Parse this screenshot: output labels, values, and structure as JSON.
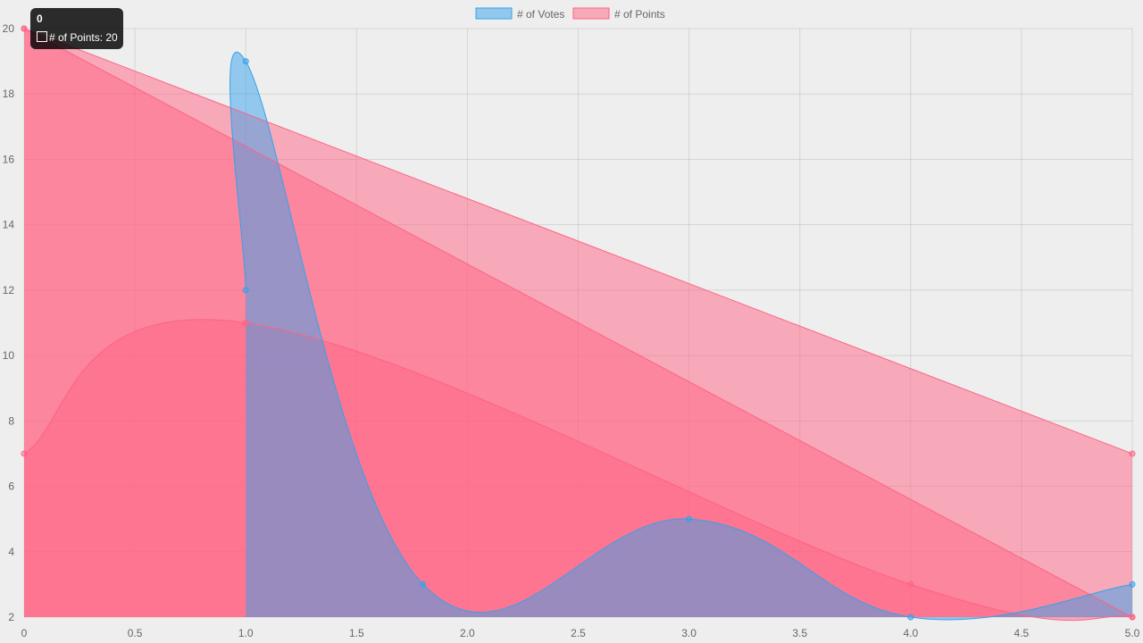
{
  "chart_data": {
    "type": "line",
    "x_axis": {
      "min": 0,
      "max": 5,
      "ticks": [
        "0",
        "0.5",
        "1.0",
        "1.5",
        "2.0",
        "2.5",
        "3.0",
        "3.5",
        "4.0",
        "4.5",
        "5.0"
      ]
    },
    "y_axis": {
      "min": 2,
      "max": 20,
      "ticks": [
        "2",
        "4",
        "6",
        "8",
        "10",
        "12",
        "14",
        "16",
        "18",
        "20"
      ]
    },
    "grid": true,
    "legend_position": "top",
    "series": [
      {
        "name": "# of Votes",
        "color": "#36a2eb",
        "fill": "rgba(54,162,235,0.5)",
        "points": [
          {
            "x": 1.0,
            "y": 12
          },
          {
            "x": 1.0,
            "y": 19
          },
          {
            "x": 1.8,
            "y": 3
          },
          {
            "x": 3.0,
            "y": 5
          },
          {
            "x": 4.0,
            "y": 2
          },
          {
            "x": 5.0,
            "y": 3
          }
        ]
      },
      {
        "name": "# of Points",
        "color": "#ff6384",
        "fill": "rgba(255,99,132,0.5)",
        "points": [
          {
            "x": 0,
            "y": 7
          },
          {
            "x": 1.0,
            "y": 11
          },
          {
            "x": 4.0,
            "y": 3
          },
          {
            "x": 5.0,
            "y": 2
          }
        ]
      },
      {
        "name": "# of Points",
        "color": "#ff6384",
        "fill": "rgba(255,99,132,0.5)",
        "points": [
          {
            "x": 0,
            "y": 20
          },
          {
            "x": 5.0,
            "y": 2
          }
        ]
      },
      {
        "name": "# of Points",
        "color": "#ff6384",
        "fill": "rgba(255,99,132,0.5)",
        "points": [
          {
            "x": 0,
            "y": 20
          },
          {
            "x": 5.0,
            "y": 7
          }
        ]
      }
    ],
    "tooltip": {
      "title": "0",
      "label": "# of Points: 20"
    }
  }
}
